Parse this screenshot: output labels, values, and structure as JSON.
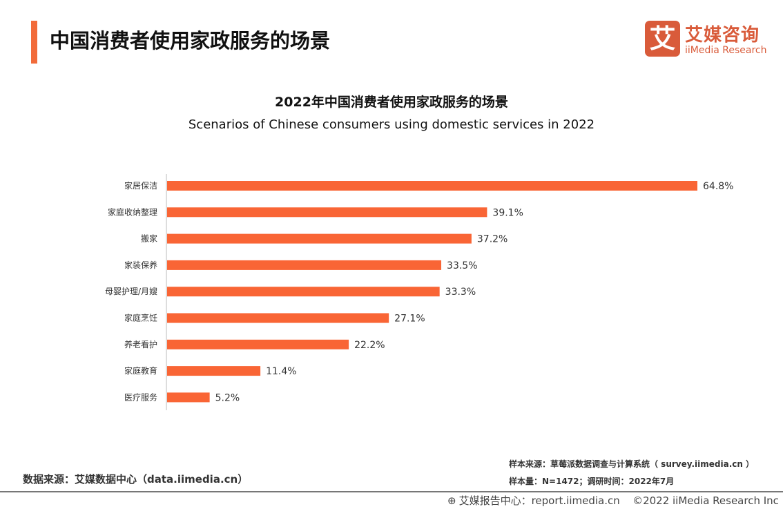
{
  "header": {
    "title": "中国消费者使用家政服务的场景"
  },
  "logo": {
    "icon_char": "艾",
    "cn": "艾媒咨询",
    "en": "iiMedia Research"
  },
  "chart_data": {
    "type": "bar",
    "orientation": "horizontal",
    "title": "2022年中国消费者使用家政服务的场景",
    "subtitle": "Scenarios of Chinese consumers using domestic services in 2022",
    "categories": [
      "家居保洁",
      "家庭收纳整理",
      "搬家",
      "家装保养",
      "母婴护理/月嫂",
      "家庭烹饪",
      "养老看护",
      "家庭教育",
      "医疗服务"
    ],
    "values": [
      64.8,
      39.1,
      37.2,
      33.5,
      33.3,
      27.1,
      22.2,
      11.4,
      5.2
    ],
    "labels": [
      "64.8%",
      "39.1%",
      "37.2%",
      "33.5%",
      "33.3%",
      "27.1%",
      "22.2%",
      "11.4%",
      "5.2%"
    ],
    "unit": "%",
    "color": "#F96535",
    "grid": false,
    "legend": "none"
  },
  "footer": {
    "data_source": "数据来源：艾媒数据中心（data.iimedia.cn）",
    "sample_source": "样本来源：草莓派数据调查与计算系统（ survey.iimedia.cn ）",
    "sample_size": "样本量：N=1472；调研时间：2022年7月",
    "report_center": "艾媒报告中心：report.iimedia.cn",
    "copyright": "©2022  iiMedia Research  Inc"
  }
}
